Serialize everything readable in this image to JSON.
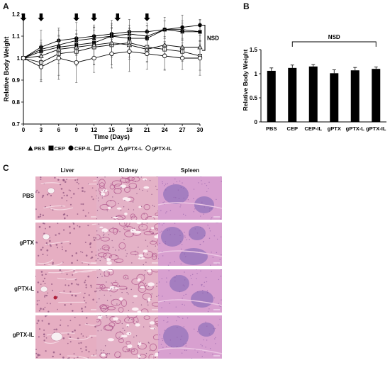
{
  "panels": {
    "a_label": "A",
    "b_label": "B",
    "c_label": "C"
  },
  "chart_data": [
    {
      "type": "line",
      "panel": "A",
      "ylabel": "Relative Body Weight",
      "xlabel": "Time (Days)",
      "xlim": [
        0,
        30
      ],
      "ylim": [
        0.7,
        1.2
      ],
      "xticks": [
        0,
        3,
        6,
        9,
        12,
        15,
        18,
        21,
        24,
        27,
        30
      ],
      "yticks": [
        0.7,
        0.8,
        0.9,
        1,
        1.1,
        1.2
      ],
      "ytick_labels": [
        "0.7",
        "0.8",
        "0.9",
        "1",
        "1.1",
        "1.2"
      ],
      "dosing_days": [
        0,
        3,
        9,
        12,
        16,
        21
      ],
      "annotation": "NSD",
      "series": [
        {
          "name": "PBS",
          "marker": "triangle-filled",
          "x": [
            0,
            3,
            6,
            9,
            12,
            15,
            18,
            21,
            24,
            27,
            30
          ],
          "y": [
            1.0,
            1.04,
            1.06,
            1.08,
            1.09,
            1.1,
            1.11,
            1.1,
            1.13,
            1.13,
            1.12
          ]
        },
        {
          "name": "CEP",
          "marker": "square-filled",
          "x": [
            0,
            3,
            6,
            9,
            12,
            15,
            18,
            21,
            24,
            27,
            30
          ],
          "y": [
            1.0,
            1.03,
            1.05,
            1.06,
            1.07,
            1.1,
            1.09,
            1.09,
            1.13,
            1.12,
            1.12
          ]
        },
        {
          "name": "CEP-IL",
          "marker": "circle-filled",
          "x": [
            0,
            3,
            6,
            9,
            12,
            15,
            18,
            21,
            24,
            27,
            30
          ],
          "y": [
            1.0,
            1.05,
            1.08,
            1.09,
            1.1,
            1.11,
            1.12,
            1.12,
            1.13,
            1.14,
            1.15
          ]
        },
        {
          "name": "gPTX",
          "marker": "square-open",
          "x": [
            0,
            3,
            6,
            9,
            12,
            15,
            18,
            21,
            24,
            27,
            30
          ],
          "y": [
            1.0,
            0.98,
            1.02,
            1.03,
            1.05,
            1.06,
            1.07,
            1.05,
            1.04,
            1.03,
            1.01
          ]
        },
        {
          "name": "gPTX-L",
          "marker": "triangle-open",
          "x": [
            0,
            3,
            6,
            9,
            12,
            15,
            18,
            21,
            24,
            27,
            30
          ],
          "y": [
            1.0,
            1.01,
            1.04,
            1.05,
            1.06,
            1.07,
            1.06,
            1.04,
            1.06,
            1.05,
            1.05
          ]
        },
        {
          "name": "gPTX-IL",
          "marker": "circle-open",
          "x": [
            0,
            3,
            6,
            9,
            12,
            15,
            18,
            21,
            24,
            27,
            30
          ],
          "y": [
            1.0,
            0.96,
            1.0,
            0.98,
            1.0,
            1.02,
            1.03,
            1.02,
            1.01,
            1.0,
            1.0
          ]
        }
      ],
      "legend": [
        "PBS",
        "CEP",
        "CEP-IL",
        "gPTX",
        "gPTX-L",
        "gPTX-IL"
      ]
    },
    {
      "type": "bar",
      "panel": "B",
      "ylabel": "Relative Body Weight",
      "categories": [
        "PBS",
        "CEP",
        "CEP-IL",
        "gPTX",
        "gPTX-L",
        "gPTX-IL"
      ],
      "values": [
        1.06,
        1.12,
        1.15,
        1.01,
        1.07,
        1.1
      ],
      "errors": [
        0.06,
        0.06,
        0.04,
        0.07,
        0.06,
        0.04
      ],
      "ylim": [
        0,
        1.5
      ],
      "yticks": [
        0,
        0.5,
        1,
        1.5
      ],
      "ytick_labels": [
        "0",
        "0.5",
        "1",
        "1.5"
      ],
      "annotation": "NSD"
    }
  ],
  "histology": {
    "columns": [
      "Liver",
      "Kidney",
      "Spleen"
    ],
    "rows": [
      "PBS",
      "gPTX",
      "gPTX-L",
      "gPTX-IL"
    ]
  },
  "colors": {
    "liver": "#e6aec2",
    "kidney": "#e4b2c7",
    "spleen": "#d8a0d0",
    "spleen_follicle": "#9b78bd"
  }
}
